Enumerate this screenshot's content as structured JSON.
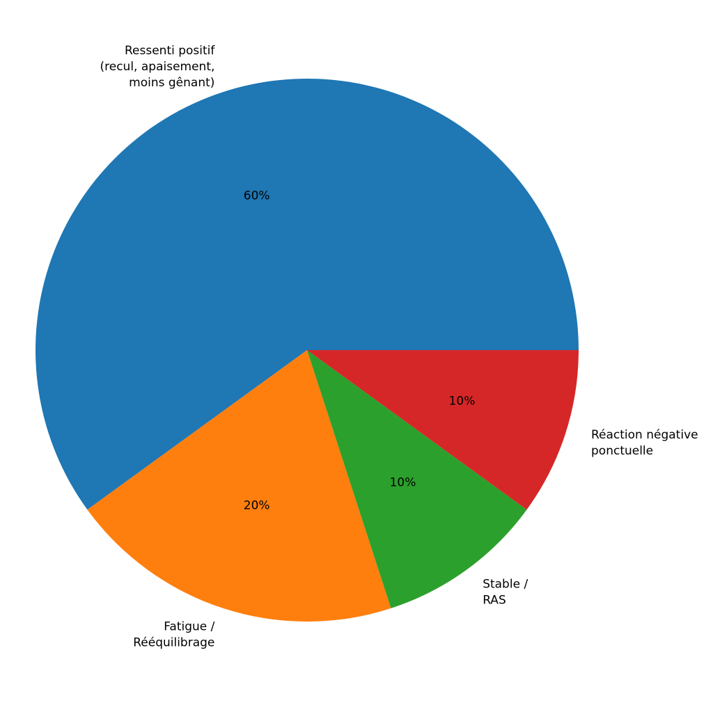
{
  "chart_data": {
    "type": "pie",
    "title": "",
    "start_angle": 0,
    "counterclock": true,
    "pct_distance": 0.6,
    "label_distance": 1.1,
    "text_color": "#000000",
    "background": "#ffffff",
    "slices": [
      {
        "label": "Ressenti positif (recul, apaisement, moins gênant)",
        "label_lines": [
          "Ressenti positif",
          "(recul, apaisement,",
          "moins gênant)"
        ],
        "value": 60,
        "pct_label": "60%",
        "color": "#1f77b4"
      },
      {
        "label": "Fatigue / Rééquilibrage",
        "label_lines": [
          "Fatigue /",
          "Rééquilibrage"
        ],
        "value": 20,
        "pct_label": "20%",
        "color": "#ff7f0e"
      },
      {
        "label": "Stable / RAS",
        "label_lines": [
          "Stable /",
          "RAS"
        ],
        "value": 10,
        "pct_label": "10%",
        "color": "#2ca02c"
      },
      {
        "label": "Réaction négative ponctuelle",
        "label_lines": [
          "Réaction négative",
          "ponctuelle"
        ],
        "value": 10,
        "pct_label": "10%",
        "color": "#d62728"
      }
    ]
  }
}
